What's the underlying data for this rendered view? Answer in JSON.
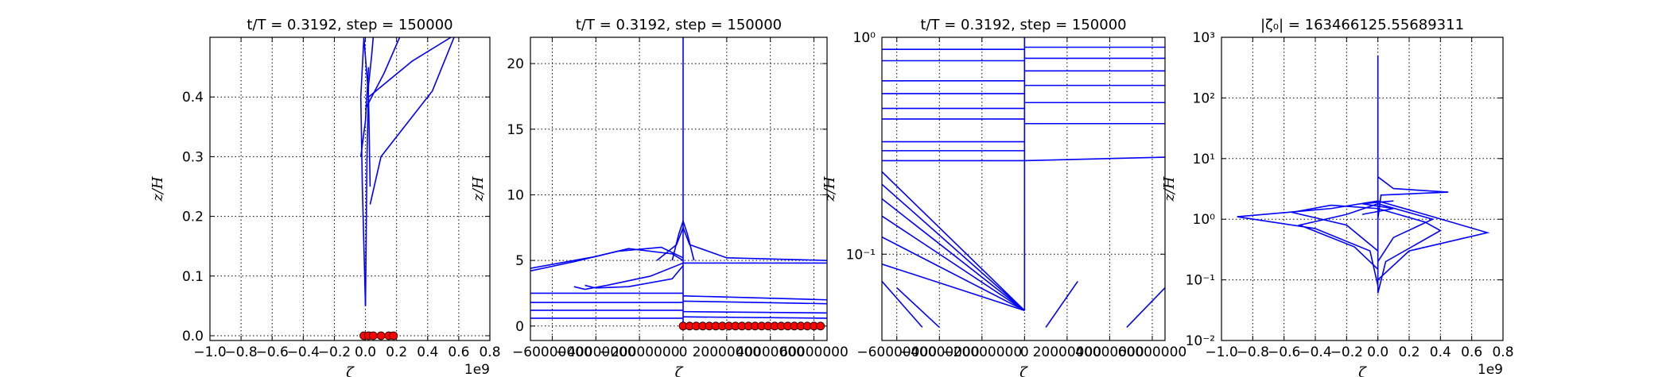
{
  "chart_data": [
    {
      "type": "line",
      "title": "t/T = 0.3192, step = 150000",
      "x_label": "ζ",
      "y_label": "z/H",
      "x_offset_label": "1e9",
      "xlim": [
        -1.0,
        0.8
      ],
      "ylim": [
        -0.008,
        0.5
      ],
      "yscale": "linear",
      "grid": true,
      "xticks": [
        {
          "value": -1.0,
          "label": "−1.0"
        },
        {
          "value": -0.8,
          "label": "−0.8"
        },
        {
          "value": -0.6,
          "label": "−0.6"
        },
        {
          "value": -0.4,
          "label": "−0.4"
        },
        {
          "value": -0.2,
          "label": "−0.2"
        },
        {
          "value": 0.0,
          "label": "0.0"
        },
        {
          "value": 0.2,
          "label": "0.2"
        },
        {
          "value": 0.4,
          "label": "0.4"
        },
        {
          "value": 0.6,
          "label": "0.6"
        },
        {
          "value": 0.8,
          "label": "0.8"
        }
      ],
      "yticks": [
        {
          "value": 0.0,
          "label": "0.0"
        },
        {
          "value": 0.1,
          "label": "0.1"
        },
        {
          "value": 0.2,
          "label": "0.2"
        },
        {
          "value": 0.3,
          "label": "0.3"
        },
        {
          "value": 0.4,
          "label": "0.4"
        }
      ],
      "series": [
        {
          "color": "#0000ff",
          "x": [
            0,
            -0.02,
            -0.03,
            -0.01,
            0.02,
            0.03
          ],
          "y": [
            0.05,
            0.25,
            0.4,
            0.5,
            0.4,
            0.25
          ]
        },
        {
          "color": "#0000ff",
          "x": [
            0,
            0.01,
            0.02,
            0.04,
            0.05
          ],
          "y": [
            0.05,
            0.3,
            0.42,
            0.47,
            0.5
          ]
        },
        {
          "color": "#0000ff",
          "x": [
            0.03,
            0.1,
            0.43,
            0.57
          ],
          "y": [
            0.22,
            0.3,
            0.41,
            0.5
          ]
        },
        {
          "color": "#0000ff",
          "x": [
            0.0,
            0.12,
            0.22
          ],
          "y": [
            0.38,
            0.44,
            0.5
          ]
        },
        {
          "color": "#0000ff",
          "x": [
            0.02,
            0.3,
            0.55
          ],
          "y": [
            0.4,
            0.46,
            0.5
          ]
        },
        {
          "color": "#0000ff",
          "x": [
            -0.03,
            0.0,
            0.02
          ],
          "y": [
            0.3,
            0.36,
            0.45
          ]
        }
      ],
      "points": {
        "color": "#ff0000",
        "x": [
          -0.01,
          0.02,
          0.05,
          0.1,
          0.15,
          0.18
        ],
        "y": [
          0,
          0,
          0,
          0,
          0,
          0
        ]
      }
    },
    {
      "type": "line",
      "title": "t/T = 0.3192, step = 150000",
      "x_label": "ζ",
      "y_label": "z/H",
      "xlim": [
        -70000000,
        66000000
      ],
      "ylim": [
        -1.1,
        22
      ],
      "yscale": "linear",
      "grid": true,
      "xticks": [
        {
          "value": -60000000,
          "label": "−60000000"
        },
        {
          "value": -40000000,
          "label": "−40000000"
        },
        {
          "value": -20000000,
          "label": "−20000000"
        },
        0,
        20000000,
        40000000,
        60000000
      ],
      "yticks": [
        0,
        5,
        10,
        15,
        20
      ],
      "series": [
        {
          "color": "#0000ff",
          "x": [
            0,
            0
          ],
          "y": [
            0,
            22
          ]
        },
        {
          "color": "#0000ff",
          "x": [
            -70000000,
            -40000000,
            -25000000,
            -5000000,
            0
          ],
          "y": [
            4.4,
            5.3,
            5.9,
            5.5,
            5.0
          ]
        },
        {
          "color": "#0000ff",
          "x": [
            -70000000,
            -50000000,
            -30000000,
            -10000000,
            0
          ],
          "y": [
            4.2,
            4.9,
            5.7,
            6.0,
            5.2
          ]
        },
        {
          "color": "#0000ff",
          "x": [
            -50000000,
            -45000000,
            -35000000,
            -15000000,
            0
          ],
          "y": [
            3.0,
            2.8,
            3.1,
            3.8,
            4.8
          ]
        },
        {
          "color": "#0000ff",
          "x": [
            -45000000,
            -40000000,
            -25000000,
            -5000000,
            0
          ],
          "y": [
            3.1,
            2.9,
            3.0,
            3.6,
            4.6
          ]
        },
        {
          "color": "#0000ff",
          "x": [
            -5000000,
            -2000000,
            0,
            2000000,
            5000000
          ],
          "y": [
            5.0,
            7.0,
            8.0,
            7.0,
            5.0
          ]
        },
        {
          "color": "#0000ff",
          "x": [
            -12000000,
            -3000000,
            0,
            3000000,
            20000000,
            66000000
          ],
          "y": [
            5.0,
            6.2,
            7.5,
            6.2,
            5.2,
            5.0
          ]
        },
        {
          "color": "#0000ff",
          "x": [
            -70000000,
            0
          ],
          "y": [
            2.5,
            2.5
          ]
        },
        {
          "color": "#0000ff",
          "x": [
            -70000000,
            0
          ],
          "y": [
            1.8,
            1.8
          ]
        },
        {
          "color": "#0000ff",
          "x": [
            -70000000,
            0
          ],
          "y": [
            1.2,
            1.2
          ]
        },
        {
          "color": "#0000ff",
          "x": [
            -70000000,
            0
          ],
          "y": [
            0.6,
            0.6
          ]
        },
        {
          "color": "#0000ff",
          "x": [
            0,
            66000000
          ],
          "y": [
            2.3,
            2.0
          ]
        },
        {
          "color": "#0000ff",
          "x": [
            0,
            66000000
          ],
          "y": [
            1.9,
            1.7
          ]
        },
        {
          "color": "#0000ff",
          "x": [
            0,
            66000000
          ],
          "y": [
            1.1,
            1.0
          ]
        },
        {
          "color": "#0000ff",
          "x": [
            0,
            66000000
          ],
          "y": [
            0.7,
            0.6
          ]
        },
        {
          "color": "#0000ff",
          "x": [
            0,
            66000000
          ],
          "y": [
            4.8,
            4.8
          ]
        }
      ],
      "points": {
        "color": "#ff0000",
        "x": [
          0,
          3000000,
          6000000,
          9000000,
          12000000,
          15000000,
          18000000,
          21000000,
          24000000,
          27000000,
          30000000,
          33000000,
          36000000,
          39000000,
          42000000,
          45000000,
          48000000,
          51000000,
          54000000,
          57000000,
          60000000,
          63000000
        ],
        "y": [
          0,
          0,
          0,
          0,
          0,
          0,
          0,
          0,
          0,
          0,
          0,
          0,
          0,
          0,
          0,
          0,
          0,
          0,
          0,
          0,
          0,
          0
        ]
      }
    },
    {
      "type": "line",
      "title": "t/T = 0.3192, step = 150000",
      "x_label": "ζ",
      "y_label": "z/H",
      "xlim": [
        -67000000,
        66000000
      ],
      "ylim": [
        0.04,
        1
      ],
      "yscale": "log",
      "grid": true,
      "xticks": [
        {
          "value": -60000000,
          "label": "−60000000"
        },
        {
          "value": -40000000,
          "label": "−40000000"
        },
        {
          "value": -20000000,
          "label": "−20000000"
        },
        0,
        20000000,
        40000000,
        60000000
      ],
      "yticks": [
        {
          "value": 0.1,
          "label": "10⁻¹"
        },
        {
          "value": 1,
          "label": "10⁰"
        }
      ],
      "series": [
        {
          "color": "#0000ff",
          "x": [
            0,
            0
          ],
          "y": [
            0.055,
            1
          ]
        },
        {
          "color": "#0000ff",
          "x": [
            -67000000,
            0
          ],
          "y": [
            0.09,
            0.055
          ]
        },
        {
          "color": "#0000ff",
          "x": [
            -67000000,
            0
          ],
          "y": [
            0.12,
            0.055
          ]
        },
        {
          "color": "#0000ff",
          "x": [
            -67000000,
            0
          ],
          "y": [
            0.15,
            0.055
          ]
        },
        {
          "color": "#0000ff",
          "x": [
            -67000000,
            0
          ],
          "y": [
            0.18,
            0.055
          ]
        },
        {
          "color": "#0000ff",
          "x": [
            -67000000,
            0
          ],
          "y": [
            0.21,
            0.055
          ]
        },
        {
          "color": "#0000ff",
          "x": [
            -67000000,
            0
          ],
          "y": [
            0.24,
            0.055
          ]
        },
        {
          "color": "#0000ff",
          "x": [
            -67000000,
            0
          ],
          "y": [
            0.27,
            0.27
          ]
        },
        {
          "color": "#0000ff",
          "x": [
            -67000000,
            0
          ],
          "y": [
            0.3,
            0.3
          ]
        },
        {
          "color": "#0000ff",
          "x": [
            -67000000,
            0
          ],
          "y": [
            0.33,
            0.33
          ]
        },
        {
          "color": "#0000ff",
          "x": [
            -67000000,
            0
          ],
          "y": [
            0.42,
            0.42
          ]
        },
        {
          "color": "#0000ff",
          "x": [
            -67000000,
            0
          ],
          "y": [
            0.47,
            0.47
          ]
        },
        {
          "color": "#0000ff",
          "x": [
            -67000000,
            0
          ],
          "y": [
            0.55,
            0.55
          ]
        },
        {
          "color": "#0000ff",
          "x": [
            -67000000,
            0
          ],
          "y": [
            0.63,
            0.63
          ]
        },
        {
          "color": "#0000ff",
          "x": [
            -67000000,
            0
          ],
          "y": [
            0.78,
            0.78
          ]
        },
        {
          "color": "#0000ff",
          "x": [
            -67000000,
            0
          ],
          "y": [
            0.88,
            0.88
          ]
        },
        {
          "color": "#0000ff",
          "x": [
            0,
            66000000
          ],
          "y": [
            0.4,
            0.4
          ]
        },
        {
          "color": "#0000ff",
          "x": [
            0,
            66000000
          ],
          "y": [
            0.5,
            0.5
          ]
        },
        {
          "color": "#0000ff",
          "x": [
            0,
            66000000
          ],
          "y": [
            0.6,
            0.6
          ]
        },
        {
          "color": "#0000ff",
          "x": [
            0,
            66000000
          ],
          "y": [
            0.7,
            0.7
          ]
        },
        {
          "color": "#0000ff",
          "x": [
            0,
            66000000
          ],
          "y": [
            0.8,
            0.8
          ]
        },
        {
          "color": "#0000ff",
          "x": [
            0,
            66000000
          ],
          "y": [
            0.9,
            0.9
          ]
        },
        {
          "color": "#0000ff",
          "x": [
            0,
            66000000
          ],
          "y": [
            0.27,
            0.28
          ]
        },
        {
          "color": "#0000ff",
          "x": [
            -67000000,
            -48000000
          ],
          "y": [
            0.075,
            0.046
          ]
        },
        {
          "color": "#0000ff",
          "x": [
            -60000000,
            -40000000
          ],
          "y": [
            0.07,
            0.046
          ]
        },
        {
          "color": "#0000ff",
          "x": [
            10000000,
            25000000
          ],
          "y": [
            0.046,
            0.075
          ]
        },
        {
          "color": "#0000ff",
          "x": [
            48000000,
            66000000
          ],
          "y": [
            0.046,
            0.07
          ]
        }
      ]
    },
    {
      "type": "line",
      "title": "|ζ₀| = 163466125.55689311",
      "x_label": "ζ",
      "y_label": "z/H",
      "x_offset_label": "1e9",
      "xlim": [
        -1.0,
        0.8
      ],
      "ylim": [
        0.01,
        1000
      ],
      "yscale": "log",
      "grid": true,
      "xticks": [
        {
          "value": -1.0,
          "label": "−1.0"
        },
        {
          "value": -0.8,
          "label": "−0.8"
        },
        {
          "value": -0.6,
          "label": "−0.6"
        },
        {
          "value": -0.4,
          "label": "−0.4"
        },
        {
          "value": -0.2,
          "label": "−0.2"
        },
        {
          "value": 0.0,
          "label": "0.0"
        },
        {
          "value": 0.2,
          "label": "0.2"
        },
        {
          "value": 0.4,
          "label": "0.4"
        },
        {
          "value": 0.6,
          "label": "0.6"
        },
        {
          "value": 0.8,
          "label": "0.8"
        }
      ],
      "yticks": [
        {
          "value": 0.01,
          "label": "10⁻²"
        },
        {
          "value": 0.1,
          "label": "10⁻¹"
        },
        {
          "value": 1,
          "label": "10⁰"
        },
        {
          "value": 10,
          "label": "10¹"
        },
        {
          "value": 100,
          "label": "10²"
        },
        {
          "value": 1000,
          "label": "10³"
        }
      ],
      "series": [
        {
          "color": "#0000ff",
          "x": [
            0,
            0
          ],
          "y": [
            0.06,
            500
          ]
        },
        {
          "color": "#0000ff",
          "x": [
            0,
            -0.05,
            -0.4,
            -0.9,
            -0.3,
            0,
            0.3,
            0.7,
            0.2,
            0
          ],
          "y": [
            0.08,
            0.3,
            0.7,
            1.1,
            1.5,
            2,
            1.2,
            0.6,
            0.3,
            0.1
          ]
        },
        {
          "color": "#0000ff",
          "x": [
            0,
            0.05,
            0.4,
            0.3,
            0,
            -0.3,
            -0.55,
            -0.2,
            0
          ],
          "y": [
            0.06,
            0.2,
            0.65,
            0.9,
            1.5,
            1.7,
            1.3,
            0.8,
            0.3
          ]
        },
        {
          "color": "#0000ff",
          "x": [
            0,
            0.02,
            0.45,
            0.1,
            0
          ],
          "y": [
            1,
            2.5,
            2.8,
            3.2,
            5
          ]
        },
        {
          "color": "#0000ff",
          "x": [
            0,
            -0.15,
            -0.5,
            -0.2,
            0,
            0.35,
            0.1,
            0
          ],
          "y": [
            0.15,
            0.35,
            0.8,
            1.2,
            1.8,
            1.0,
            0.5,
            0.2
          ]
        },
        {
          "color": "#0000ff",
          "x": [
            -0.1,
            0.1,
            -0.1,
            0.1
          ],
          "y": [
            1.2,
            1.5,
            1.8,
            2.0
          ]
        }
      ]
    }
  ]
}
